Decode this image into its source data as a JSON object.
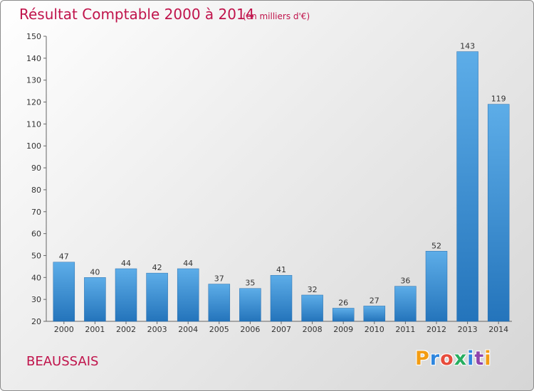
{
  "chart_data": {
    "type": "bar",
    "title": "Résultat Comptable 2000 à 2014",
    "subtitle": "(en milliers d'€)",
    "categories": [
      "2000",
      "2001",
      "2002",
      "2003",
      "2004",
      "2005",
      "2006",
      "2007",
      "2008",
      "2009",
      "2010",
      "2011",
      "2012",
      "2013",
      "2014"
    ],
    "values": [
      47,
      40,
      44,
      42,
      44,
      37,
      35,
      41,
      32,
      26,
      27,
      36,
      52,
      143,
      119
    ],
    "ylim": [
      20,
      150
    ],
    "yticks": [
      20,
      30,
      40,
      50,
      60,
      70,
      80,
      90,
      100,
      110,
      120,
      130,
      140,
      150
    ],
    "xlabel": "",
    "ylabel": "",
    "grid": false,
    "bar_color": "#3a8fd6"
  },
  "place_label": "BEAUSSAIS",
  "logo": {
    "text": "Proxiti",
    "colors": [
      "#f39c12",
      "#2e86de",
      "#e74c3c",
      "#27ae60",
      "#2e86de",
      "#8e44ad",
      "#f39c12"
    ]
  }
}
